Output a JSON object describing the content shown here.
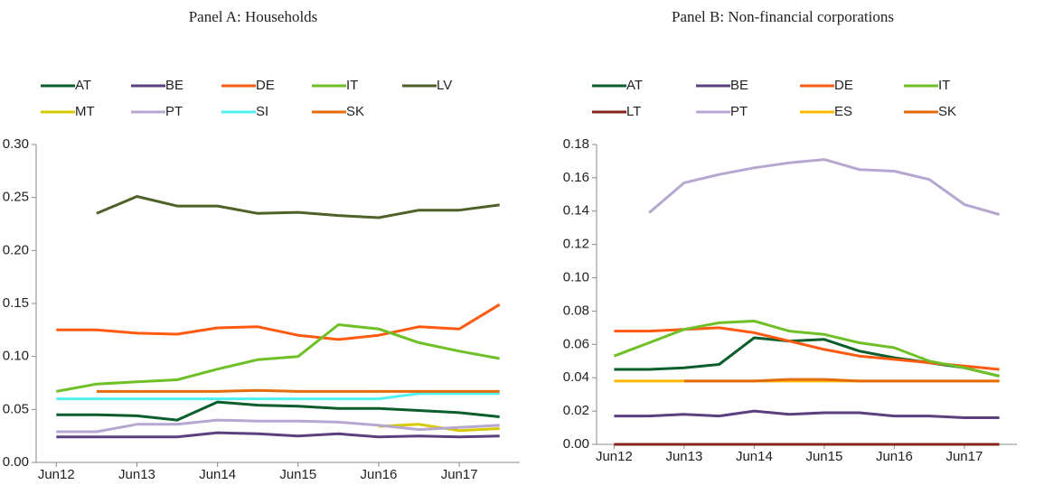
{
  "chart_data": [
    {
      "type": "line",
      "title": "Panel A: Households",
      "categories": [
        "Jun12",
        null,
        "Jun13",
        null,
        "Jun14",
        null,
        "Jun15",
        null,
        "Jun16",
        null,
        "Jun17",
        null
      ],
      "ylim": [
        0,
        0.3
      ],
      "yticks": [
        {
          "value": 0,
          "label": "0.00"
        },
        {
          "value": 0.05,
          "label": "0.05"
        },
        {
          "value": 0.1,
          "label": "0.10"
        },
        {
          "value": 0.15,
          "label": "0.15"
        },
        {
          "value": 0.2,
          "label": "0.20"
        },
        {
          "value": 0.25,
          "label": "0.25"
        },
        {
          "value": 0.3,
          "label": "0.30"
        }
      ],
      "series": [
        {
          "name": "AT",
          "color": "#0b5e2b",
          "values": [
            0.045,
            0.045,
            0.044,
            0.04,
            0.057,
            0.054,
            0.053,
            0.051,
            0.051,
            0.049,
            0.047,
            0.043
          ]
        },
        {
          "name": "BE",
          "color": "#5b3f7f",
          "values": [
            0.024,
            0.024,
            0.024,
            0.024,
            0.028,
            0.027,
            0.025,
            0.027,
            0.024,
            0.025,
            0.024,
            0.025
          ]
        },
        {
          "name": "DE",
          "color": "#ff5a10",
          "values": [
            0.125,
            0.125,
            0.122,
            0.121,
            0.127,
            0.128,
            0.12,
            0.116,
            0.12,
            0.128,
            0.126,
            0.149
          ]
        },
        {
          "name": "IT",
          "color": "#6fbf26",
          "values": [
            0.067,
            0.074,
            0.076,
            0.078,
            0.088,
            0.097,
            0.1,
            0.13,
            0.126,
            0.113,
            0.105,
            0.098
          ]
        },
        {
          "name": "LV",
          "color": "#4e6128",
          "values": [
            null,
            0.235,
            0.251,
            0.242,
            0.242,
            0.235,
            0.236,
            0.233,
            0.231,
            0.238,
            0.238,
            0.243
          ]
        },
        {
          "name": "MT",
          "color": "#d6c900",
          "values": [
            null,
            null,
            null,
            null,
            null,
            null,
            null,
            null,
            0.034,
            0.036,
            0.03,
            0.032
          ]
        },
        {
          "name": "PT",
          "color": "#b5a7cf",
          "values": [
            0.029,
            0.029,
            0.036,
            0.036,
            0.04,
            0.039,
            0.039,
            0.038,
            0.035,
            0.031,
            0.033,
            0.035
          ]
        },
        {
          "name": "SI",
          "color": "#4ff0f0",
          "values": [
            0.06,
            0.06,
            0.06,
            0.06,
            0.06,
            0.06,
            0.06,
            0.06,
            0.06,
            0.065,
            0.065,
            0.065
          ]
        },
        {
          "name": "SK",
          "color": "#e46c0a",
          "values": [
            null,
            0.067,
            0.067,
            0.067,
            0.067,
            0.068,
            0.067,
            0.067,
            0.067,
            0.067,
            0.067,
            0.067
          ]
        }
      ]
    },
    {
      "type": "line",
      "title": "Panel B: Non-financial corporations",
      "categories": [
        "Jun12",
        null,
        "Jun13",
        null,
        "Jun14",
        null,
        "Jun15",
        null,
        "Jun16",
        null,
        "Jun17",
        null
      ],
      "ylim": [
        0,
        0.18
      ],
      "yticks": [
        {
          "value": 0,
          "label": "0.00"
        },
        {
          "value": 0.02,
          "label": "0.02"
        },
        {
          "value": 0.04,
          "label": "0.04"
        },
        {
          "value": 0.06,
          "label": "0.06"
        },
        {
          "value": 0.08,
          "label": "0.08"
        },
        {
          "value": 0.1,
          "label": "0.10"
        },
        {
          "value": 0.12,
          "label": "0.12"
        },
        {
          "value": 0.14,
          "label": "0.14"
        },
        {
          "value": 0.16,
          "label": "0.16"
        },
        {
          "value": 0.18,
          "label": "0.18"
        }
      ],
      "series": [
        {
          "name": "AT",
          "color": "#0b5e2b",
          "values": [
            0.045,
            0.045,
            0.046,
            0.048,
            0.064,
            0.062,
            0.063,
            0.056,
            0.052,
            0.049,
            0.046,
            0.041
          ]
        },
        {
          "name": "BE",
          "color": "#5b3f7f",
          "values": [
            0.017,
            0.017,
            0.018,
            0.017,
            0.02,
            0.018,
            0.019,
            0.019,
            0.017,
            0.017,
            0.016,
            0.016
          ]
        },
        {
          "name": "DE",
          "color": "#ff5a10",
          "values": [
            0.068,
            0.068,
            0.069,
            0.07,
            0.067,
            0.062,
            0.057,
            0.053,
            0.051,
            0.049,
            0.047,
            0.045
          ]
        },
        {
          "name": "IT",
          "color": "#6fbf26",
          "values": [
            0.053,
            0.061,
            0.069,
            0.073,
            0.074,
            0.068,
            0.066,
            0.061,
            0.058,
            0.05,
            0.046,
            0.041
          ]
        },
        {
          "name": "LT",
          "color": "#8b2323",
          "values": [
            0,
            0,
            0,
            0,
            0,
            0,
            0,
            0,
            0,
            0,
            0,
            0
          ]
        },
        {
          "name": "PT",
          "color": "#b5a7cf",
          "values": [
            null,
            0.139,
            0.157,
            0.162,
            0.166,
            0.169,
            0.171,
            0.165,
            0.164,
            0.159,
            0.144,
            0.138
          ]
        },
        {
          "name": "ES",
          "color": "#ffb800",
          "values": [
            0.038,
            0.038,
            0.038,
            0.038,
            0.038,
            0.038,
            0.038,
            0.038,
            0.038,
            0.038,
            0.038,
            0.038
          ]
        },
        {
          "name": "SK",
          "color": "#e46c0a",
          "values": [
            null,
            null,
            0.038,
            0.038,
            0.038,
            0.039,
            0.039,
            0.038,
            0.038,
            0.038,
            0.038,
            0.038
          ]
        }
      ]
    }
  ]
}
